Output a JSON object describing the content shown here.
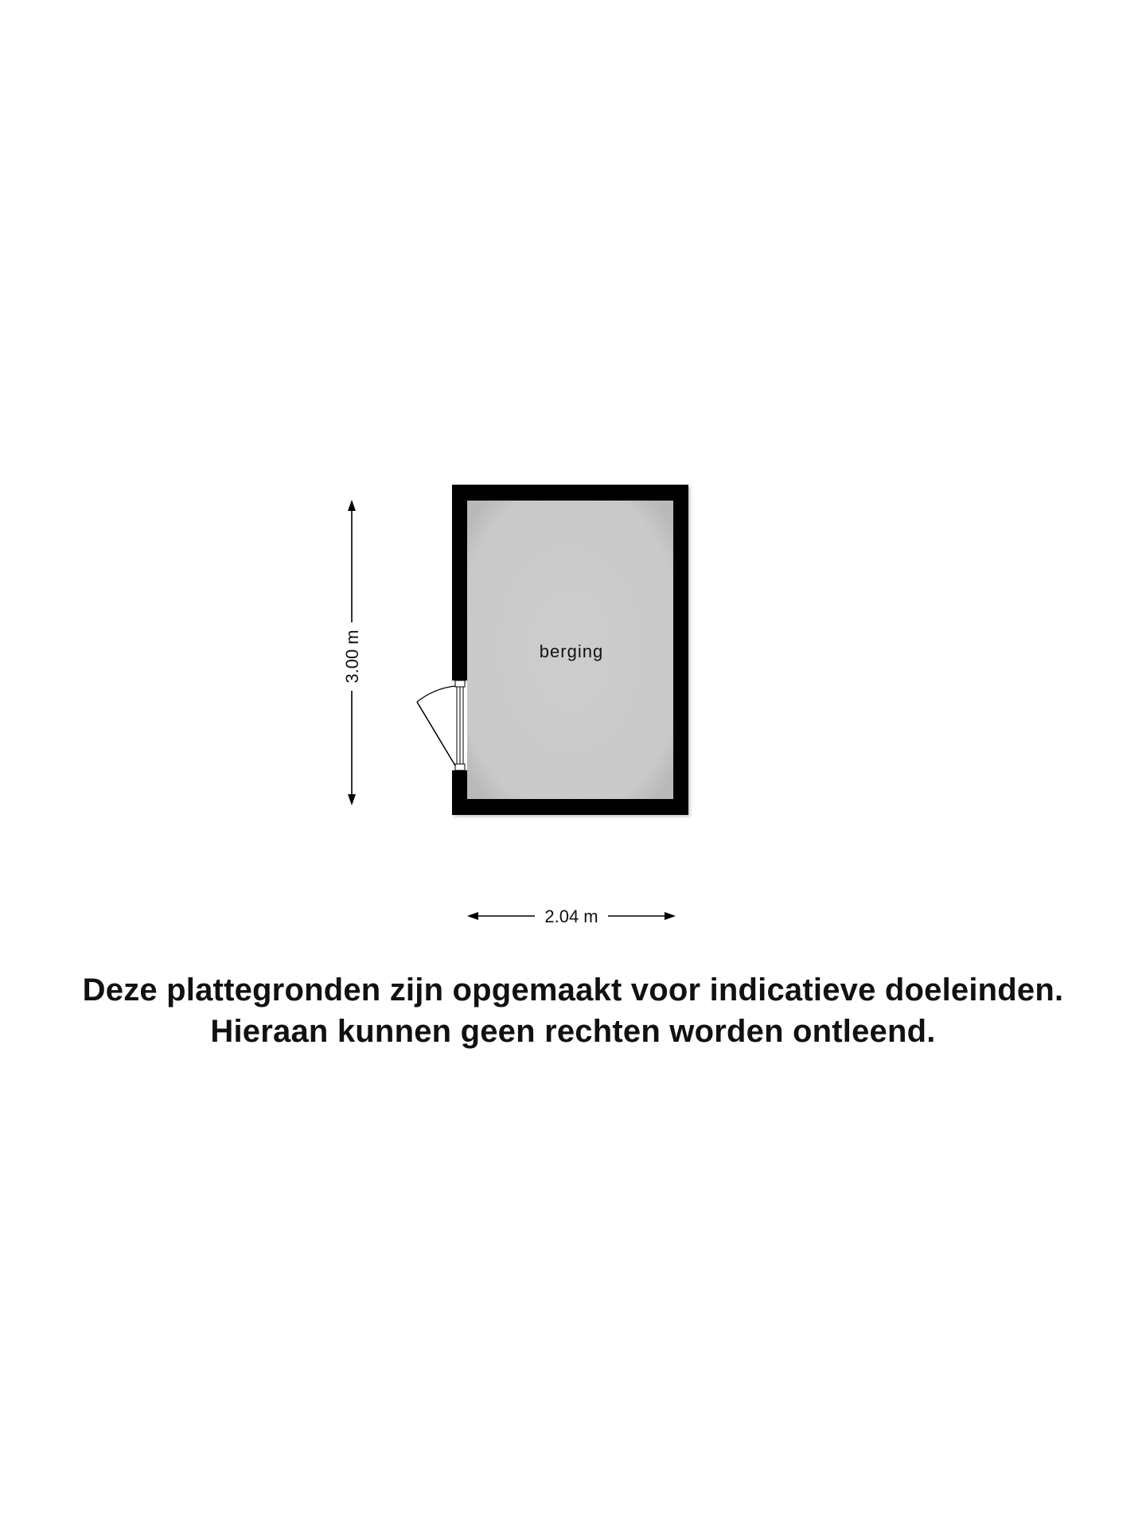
{
  "floorplan": {
    "room": {
      "label": "berging"
    },
    "dimensions": {
      "height_label": "3.00 m",
      "width_label": "2.04 m"
    }
  },
  "disclaimer": {
    "line1": "Deze plattegronden zijn opgemaakt voor indicatieve doeleinden.",
    "line2": "Hieraan kunnen geen rechten worden ontleend."
  },
  "colors": {
    "wall": "#000000",
    "floor": "#cccccc",
    "text": "#111111"
  }
}
